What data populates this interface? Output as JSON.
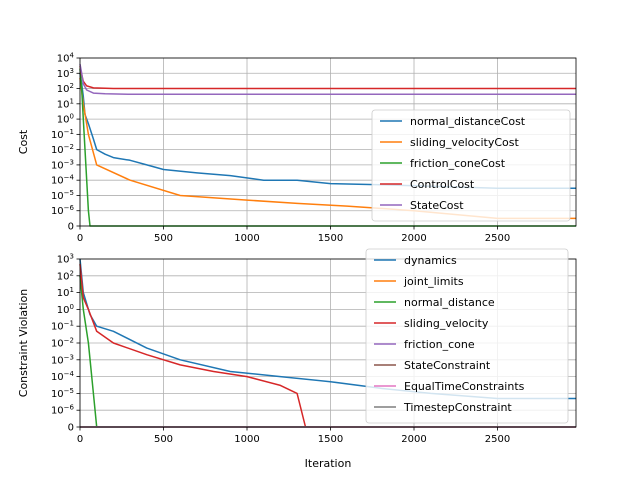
{
  "colors": {
    "blue": "#1f77b4",
    "orange": "#ff7f0e",
    "green": "#2ca02c",
    "red": "#d62728",
    "purple": "#9467bd",
    "brown": "#8c564b",
    "pink": "#e377c2",
    "grid": "#b0b0b0"
  },
  "chart_data": [
    {
      "type": "line",
      "ylabel": "Cost",
      "xlabel": "",
      "yscale": "symlog",
      "grid": true,
      "xlim": [
        0,
        2970
      ],
      "x_ticks": [
        "0",
        "500",
        "1000",
        "1500",
        "2000",
        "2500"
      ],
      "y_ticks": [
        "0",
        "10−6",
        "10−5",
        "10−4",
        "10−3",
        "10−2",
        "10−1",
        "100",
        "101",
        "102",
        "103",
        "104"
      ],
      "legend_position": "lower-right",
      "series": [
        {
          "name": "normal_distanceCost",
          "color": "#1f77b4",
          "points": [
            [
              0,
              1000
            ],
            [
              10,
              200
            ],
            [
              20,
              30
            ],
            [
              30,
              2
            ],
            [
              50,
              0.5
            ],
            [
              80,
              0.05
            ],
            [
              100,
              0.01
            ],
            [
              150,
              0.005
            ],
            [
              200,
              0.003
            ],
            [
              300,
              0.002
            ],
            [
              400,
              0.001
            ],
            [
              500,
              0.0005
            ],
            [
              700,
              0.0003
            ],
            [
              900,
              0.0002
            ],
            [
              1100,
              0.0001
            ],
            [
              1300,
              0.0001
            ],
            [
              1500,
              6e-05
            ],
            [
              1800,
              5e-05
            ],
            [
              2100,
              4e-05
            ],
            [
              2500,
              3e-05
            ],
            [
              2970,
              3e-05
            ]
          ]
        },
        {
          "name": "sliding_velocityCost",
          "color": "#ff7f0e",
          "points": [
            [
              0,
              500
            ],
            [
              20,
              10
            ],
            [
              50,
              0.1
            ],
            [
              100,
              0.001
            ],
            [
              300,
              0.0001
            ],
            [
              600,
              1e-05
            ],
            [
              1000,
              5e-06
            ],
            [
              1300,
              3e-06
            ],
            [
              1600,
              2e-06
            ],
            [
              2000,
              1e-06
            ],
            [
              2500,
              5e-07
            ],
            [
              2970,
              5e-07
            ]
          ]
        },
        {
          "name": "friction_coneCost",
          "color": "#2ca02c",
          "points": [
            [
              0,
              2000
            ],
            [
              10,
              100
            ],
            [
              20,
              1
            ],
            [
              30,
              0.01
            ],
            [
              40,
              0.0001
            ],
            [
              50,
              1e-06
            ],
            [
              60,
              0
            ],
            [
              2970,
              0
            ]
          ]
        },
        {
          "name": "ControlCost",
          "color": "#d62728",
          "points": [
            [
              0,
              3000
            ],
            [
              10,
              800
            ],
            [
              20,
              300
            ],
            [
              40,
              150
            ],
            [
              80,
              110
            ],
            [
              200,
              100
            ],
            [
              500,
              100
            ],
            [
              1000,
              100
            ],
            [
              2000,
              100
            ],
            [
              2970,
              100
            ]
          ]
        },
        {
          "name": "StateCost",
          "color": "#9467bd",
          "points": [
            [
              0,
              4000
            ],
            [
              10,
              1000
            ],
            [
              20,
              200
            ],
            [
              40,
              80
            ],
            [
              80,
              50
            ],
            [
              150,
              45
            ],
            [
              300,
              42
            ],
            [
              1000,
              42
            ],
            [
              2000,
              42
            ],
            [
              2970,
              42
            ]
          ]
        }
      ]
    },
    {
      "type": "line",
      "ylabel": "Constraint Violation",
      "xlabel": "Iteration",
      "yscale": "symlog",
      "grid": true,
      "xlim": [
        0,
        2970
      ],
      "x_ticks": [
        "0",
        "500",
        "1000",
        "1500",
        "2000",
        "2500"
      ],
      "y_ticks": [
        "0",
        "10−6",
        "10−5",
        "10−4",
        "10−3",
        "10−2",
        "10−1",
        "100",
        "101",
        "102",
        "103"
      ],
      "legend_position": "upper-right",
      "series": [
        {
          "name": "dynamics",
          "color": "#1f77b4",
          "points": [
            [
              0,
              1000
            ],
            [
              20,
              10
            ],
            [
              60,
              0.5
            ],
            [
              100,
              0.1
            ],
            [
              200,
              0.05
            ],
            [
              400,
              0.005
            ],
            [
              600,
              0.001
            ],
            [
              900,
              0.0002
            ],
            [
              1200,
              0.0001
            ],
            [
              1500,
              5e-05
            ],
            [
              1800,
              2e-05
            ],
            [
              2100,
              1e-05
            ],
            [
              2500,
              5e-06
            ],
            [
              2970,
              5e-06
            ]
          ]
        },
        {
          "name": "joint_limits",
          "color": "#ff7f0e",
          "points": [
            [
              0,
              0
            ],
            [
              2970,
              0
            ]
          ]
        },
        {
          "name": "normal_distance",
          "color": "#2ca02c",
          "points": [
            [
              0,
              100
            ],
            [
              20,
              1
            ],
            [
              50,
              0.01
            ],
            [
              80,
              1e-05
            ],
            [
              100,
              0
            ],
            [
              2970,
              0
            ]
          ]
        },
        {
          "name": "sliding_velocity",
          "color": "#d62728",
          "points": [
            [
              0,
              500
            ],
            [
              20,
              5
            ],
            [
              50,
              1
            ],
            [
              100,
              0.05
            ],
            [
              200,
              0.01
            ],
            [
              400,
              0.002
            ],
            [
              600,
              0.0005
            ],
            [
              800,
              0.0002
            ],
            [
              1000,
              0.0001
            ],
            [
              1200,
              3e-05
            ],
            [
              1300,
              1e-05
            ],
            [
              1350,
              0
            ],
            [
              2970,
              0
            ]
          ]
        },
        {
          "name": "friction_cone",
          "color": "#9467bd",
          "points": [
            [
              0,
              0
            ],
            [
              2970,
              0
            ]
          ]
        },
        {
          "name": "StateConstraint",
          "color": "#8c564b",
          "points": [
            [
              0,
              0
            ],
            [
              2970,
              0
            ]
          ]
        },
        {
          "name": "EqualTimeConstraints",
          "color": "#e377c2",
          "points": [
            [
              0,
              0
            ],
            [
              2970,
              0
            ]
          ]
        },
        {
          "name": "TimestepConstraint",
          "color": "#7f7f7f",
          "points": [
            [
              0,
              0
            ],
            [
              2970,
              0
            ]
          ]
        }
      ]
    }
  ]
}
